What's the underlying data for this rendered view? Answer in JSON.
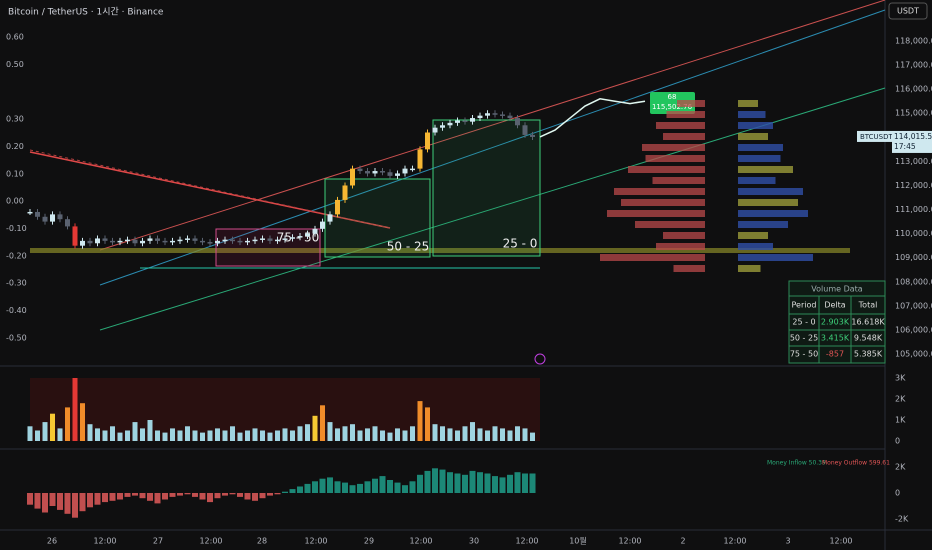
{
  "header": {
    "title": "Bitcoin / TetherUS · 1시간 · Binance",
    "currency_button": "USDT"
  },
  "left_axis": {
    "ticks": [
      {
        "value": 0.6,
        "label": "0.60"
      },
      {
        "value": 0.5,
        "label": "0.50"
      },
      {
        "value": 0.3,
        "label": "0.30"
      },
      {
        "value": 0.2,
        "label": "0.20"
      },
      {
        "value": 0.1,
        "label": "0.10"
      },
      {
        "value": 0,
        "label": "0.00"
      },
      {
        "value": -0.1,
        "label": "-0.10"
      },
      {
        "value": -0.2,
        "label": "-0.20"
      },
      {
        "value": -0.3,
        "label": "-0.30"
      },
      {
        "value": -0.4,
        "label": "-0.40"
      },
      {
        "value": -0.5,
        "label": "-0.50"
      }
    ]
  },
  "price_axis": {
    "ticks": [
      {
        "value": 118000,
        "label": "118,000.00"
      },
      {
        "value": 117000,
        "label": "117,000.00"
      },
      {
        "value": 116000,
        "label": "116,000.00"
      },
      {
        "value": 115000,
        "label": "115,000.00"
      },
      {
        "value": 113000,
        "label": "113,000.00"
      },
      {
        "value": 112000,
        "label": "112,000.00"
      },
      {
        "value": 111000,
        "label": "111,000.00"
      },
      {
        "value": 110000,
        "label": "110,000.00"
      },
      {
        "value": 109000,
        "label": "109,000.00"
      },
      {
        "value": 108000,
        "label": "108,000.00"
      },
      {
        "value": 107000,
        "label": "107,000.00"
      },
      {
        "value": 106000,
        "label": "106,000.00"
      },
      {
        "value": 105000,
        "label": "105,000.00"
      }
    ],
    "symbol": "BTCUSDT",
    "last_price": {
      "value": 114015.51,
      "label": "114,015.51"
    },
    "countdown": "17:45"
  },
  "closes": [
    110900,
    110700,
    110500,
    110800,
    110600,
    110300,
    109500,
    109700,
    109600,
    109800,
    109700,
    109650,
    109700,
    109750,
    109600,
    109700,
    109800,
    109700,
    109650,
    109700,
    109750,
    109800,
    109700,
    109650,
    109600,
    109700,
    109750,
    109700,
    109650,
    109700,
    109750,
    109800,
    109700,
    109750,
    109800,
    109850,
    109900,
    110000,
    110200,
    110500,
    110800,
    111400,
    112000,
    112700,
    112600,
    112500,
    112600,
    112550,
    112400,
    112500,
    112700,
    112700,
    113500,
    114200,
    114400,
    114500,
    114600,
    114700,
    114650,
    114800,
    114900,
    115000,
    114950,
    114900,
    114800,
    114500,
    114100,
    114015
  ],
  "projection": [
    114015,
    114300,
    114800,
    115300,
    115600,
    115500,
    115400,
    115500
  ],
  "projection_tag": {
    "count": "68",
    "price": {
      "value": 115502.76,
      "label": "115,502.76"
    }
  },
  "boxes": [
    {
      "label": "75 - 50"
    },
    {
      "label": "50 - 25"
    },
    {
      "label": "25 - 0"
    }
  ],
  "volume_profile": [
    40,
    55,
    70,
    60,
    90,
    85,
    110,
    75,
    130,
    120,
    140,
    100,
    60,
    70,
    150,
    45
  ],
  "volume": {
    "ticks": [
      {
        "value": 3000,
        "label": "3K"
      },
      {
        "value": 2000,
        "label": "2K"
      },
      {
        "value": 1000,
        "label": "1K"
      },
      0
    ],
    "values": [
      700,
      500,
      900,
      1300,
      600,
      1600,
      3000,
      1800,
      800,
      600,
      500,
      700,
      400,
      500,
      900,
      600,
      1000,
      500,
      400,
      600,
      500,
      700,
      500,
      400,
      500,
      600,
      500,
      700,
      400,
      500,
      600,
      500,
      400,
      500,
      600,
      500,
      700,
      800,
      1200,
      1700,
      900,
      600,
      700,
      800,
      500,
      600,
      700,
      500,
      400,
      600,
      500,
      700,
      1900,
      1600,
      800,
      700,
      600,
      500,
      700,
      900,
      600,
      500,
      700,
      600,
      500,
      700,
      600,
      400
    ]
  },
  "money_flow": {
    "ticks": [
      {
        "value": 2000,
        "label": "2K"
      },
      0,
      {
        "value": -2000,
        "label": "-2K"
      }
    ],
    "values": [
      -900,
      -1200,
      -1500,
      -1000,
      -1300,
      -1600,
      -1900,
      -1400,
      -1100,
      -900,
      -700,
      -600,
      -500,
      -300,
      -200,
      -400,
      -600,
      -800,
      -500,
      -300,
      -200,
      -100,
      -300,
      -500,
      -700,
      -400,
      -200,
      -100,
      -300,
      -500,
      -600,
      -400,
      -200,
      -100,
      100,
      300,
      500,
      700,
      900,
      1100,
      1200,
      900,
      800,
      600,
      700,
      900,
      1100,
      1300,
      1000,
      800,
      600,
      900,
      1400,
      1700,
      1900,
      1800,
      1600,
      1500,
      1400,
      1700,
      1600,
      1500,
      1300,
      1200,
      1400,
      1600,
      1500,
      1500
    ],
    "inflow": "Money Inflow 50.39",
    "outflow": "Money Outflow 599.61"
  },
  "volume_table": {
    "title": "Volume Data",
    "headers": [
      "Period",
      "Delta",
      "Total"
    ],
    "rows": [
      [
        "25 - 0",
        "2.903K",
        "16.618K"
      ],
      [
        "50 - 25",
        "3.415K",
        "9.548K"
      ],
      [
        "75 - 50",
        "-857",
        "5.385K"
      ]
    ]
  },
  "x_axis": [
    "26",
    "12:00",
    "27",
    "12:00",
    "28",
    "12:00",
    "29",
    "12:00",
    "30",
    "12:00",
    "10월",
    "12:00",
    "2",
    "12:00",
    "3",
    "12:00"
  ]
}
